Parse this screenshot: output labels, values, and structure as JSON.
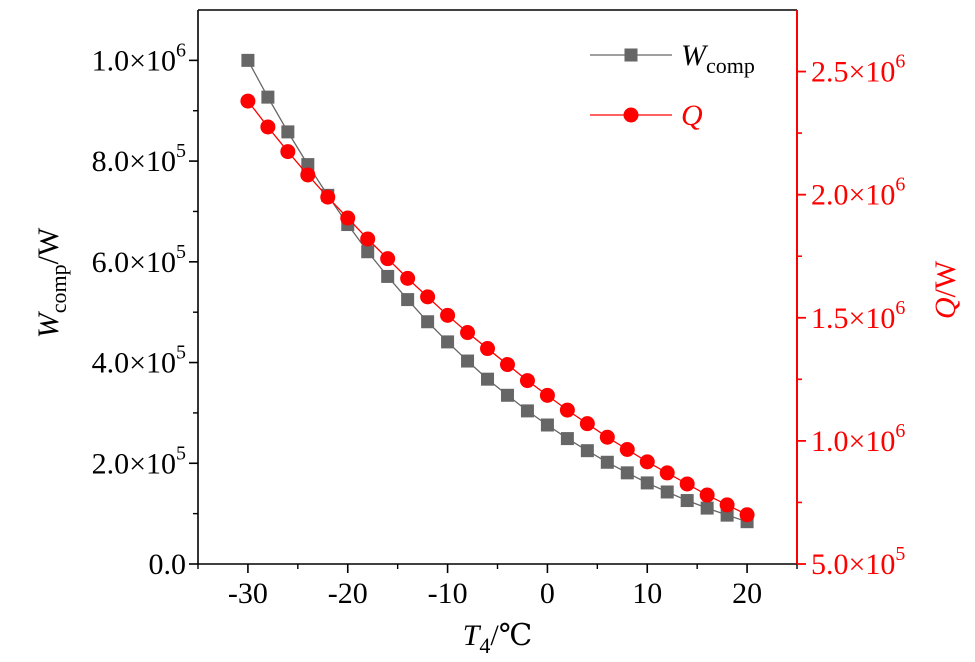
{
  "chart_data": {
    "type": "line",
    "x": [
      -30,
      -28,
      -26,
      -24,
      -22,
      -20,
      -18,
      -16,
      -14,
      -12,
      -10,
      -8,
      -6,
      -4,
      -2,
      0,
      2,
      4,
      6,
      8,
      10,
      12,
      14,
      16,
      18,
      20
    ],
    "xlim": [
      -35,
      25
    ],
    "xticks": [
      -30,
      -20,
      -10,
      0,
      10,
      20
    ],
    "xtick_labels": [
      "-30",
      "-20",
      "-10",
      "0",
      "10",
      "20"
    ],
    "xlabel": {
      "main": "T",
      "sub": "4",
      "unit": "/℃"
    },
    "grid": false,
    "legend_position": "top-right",
    "series": [
      {
        "name": "W_comp",
        "legend_main": "W",
        "legend_sub": "comp",
        "axis": "left",
        "color": "#666666",
        "marker": "square",
        "values": [
          1000000,
          927000,
          858000,
          793000,
          732000,
          674000,
          620000,
          571000,
          525000,
          481000,
          441000,
          403000,
          367000,
          335000,
          304000,
          276000,
          249000,
          225000,
          202000,
          181000,
          161000,
          143000,
          126000,
          111000,
          97000,
          84000
        ]
      },
      {
        "name": "Q",
        "legend_main": "Q",
        "legend_sub": "",
        "axis": "right",
        "color": "#ff0000",
        "marker": "circle",
        "values": [
          2380000,
          2275000,
          2175000,
          2080000,
          1990000,
          1905000,
          1820000,
          1740000,
          1660000,
          1585000,
          1510000,
          1440000,
          1375000,
          1310000,
          1245000,
          1185000,
          1125000,
          1070000,
          1015000,
          965000,
          915000,
          870000,
          825000,
          780000,
          740000,
          700000
        ]
      }
    ],
    "y_left": {
      "lim": [
        0,
        1100000
      ],
      "ticks": [
        0,
        200000,
        400000,
        600000,
        800000,
        1000000
      ],
      "tick_labels": [
        {
          "mantissa": "0.0",
          "exp": ""
        },
        {
          "mantissa": "2.0×10",
          "exp": "5"
        },
        {
          "mantissa": "4.0×10",
          "exp": "5"
        },
        {
          "mantissa": "6.0×10",
          "exp": "5"
        },
        {
          "mantissa": "8.0×10",
          "exp": "5"
        },
        {
          "mantissa": "1.0×10",
          "exp": "6"
        }
      ],
      "label": {
        "main": "W",
        "sub": "comp",
        "unit": "/W"
      },
      "color": "#000000"
    },
    "y_right": {
      "lim": [
        500000,
        2750000
      ],
      "ticks": [
        500000,
        1000000,
        1500000,
        2000000,
        2500000
      ],
      "tick_labels": [
        {
          "mantissa": "5.0×10",
          "exp": "5"
        },
        {
          "mantissa": "1.0×10",
          "exp": "6"
        },
        {
          "mantissa": "1.5×10",
          "exp": "6"
        },
        {
          "mantissa": "2.0×10",
          "exp": "6"
        },
        {
          "mantissa": "2.5×10",
          "exp": "6"
        }
      ],
      "label": {
        "main": "Q",
        "unit": "/W"
      },
      "color": "#ff0000"
    }
  }
}
